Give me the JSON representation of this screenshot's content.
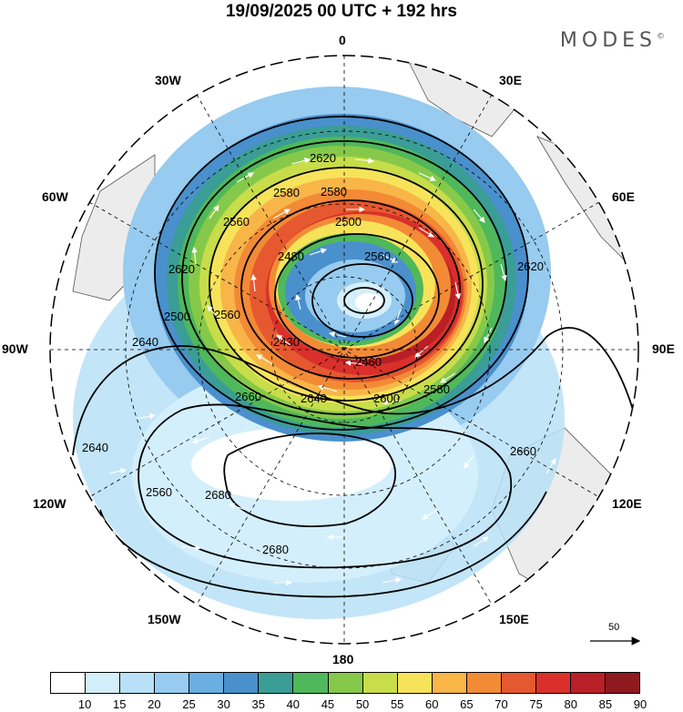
{
  "title": "19/09/2025  00 UTC  + 192 hrs",
  "brand": "MODES",
  "brand_mark": "©",
  "longitude_labels": [
    "0",
    "30E",
    "60E",
    "90E",
    "120E",
    "150E",
    "180",
    "150W",
    "120W",
    "90W",
    "60W",
    "30W"
  ],
  "contour_labels": [
    "2620",
    "2580",
    "2580",
    "2560",
    "2500",
    "2480",
    "2560",
    "2620",
    "2620",
    "2500",
    "2560",
    "2430",
    "2460",
    "2640",
    "2660",
    "2640",
    "2600",
    "2580",
    "2640",
    "2560",
    "2680",
    "2680",
    "2660"
  ],
  "vector_reference": {
    "value": "50"
  },
  "colorbar": {
    "levels": [
      "10",
      "15",
      "20",
      "25",
      "30",
      "35",
      "40",
      "45",
      "50",
      "55",
      "60",
      "65",
      "70",
      "75",
      "80",
      "85",
      "90"
    ],
    "colors": [
      "#ffffff",
      "#d4effc",
      "#b8e1f7",
      "#97cbef",
      "#6aaee2",
      "#4a90cc",
      "#3a9d96",
      "#4fb85a",
      "#86c94a",
      "#c7dd4a",
      "#f7e35a",
      "#f8b548",
      "#f28a36",
      "#e6582f",
      "#d9302b",
      "#b91f26",
      "#8c1a1e"
    ]
  }
}
